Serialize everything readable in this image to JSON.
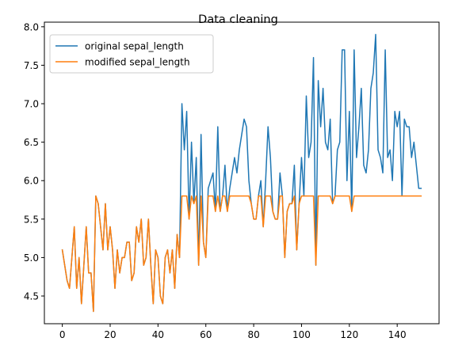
{
  "chart_data": {
    "type": "line",
    "title": "Data cleaning",
    "xlabel": "",
    "ylabel": "",
    "xlim": [
      -7.5,
      157.5
    ],
    "ylim": [
      4.14,
      8.06
    ],
    "xticks": [
      0,
      20,
      40,
      60,
      80,
      100,
      120,
      140
    ],
    "yticks": [
      4.5,
      5.0,
      5.5,
      6.0,
      6.5,
      7.0,
      7.5,
      8.0
    ],
    "xtick_labels": [
      "0",
      "20",
      "40",
      "60",
      "80",
      "100",
      "120",
      "140"
    ],
    "ytick_labels": [
      "4.5",
      "5.0",
      "5.5",
      "6.0",
      "6.5",
      "7.0",
      "7.5",
      "8.0"
    ],
    "grid": false,
    "legend_position": "upper-left",
    "series": [
      {
        "name": "original sepal_length",
        "color": "#1f77b4",
        "values": [
          5.1,
          4.9,
          4.7,
          4.6,
          5.0,
          5.4,
          4.6,
          5.0,
          4.4,
          4.9,
          5.4,
          4.8,
          4.8,
          4.3,
          5.8,
          5.7,
          5.4,
          5.1,
          5.7,
          5.1,
          5.4,
          5.1,
          4.6,
          5.1,
          4.8,
          5.0,
          5.0,
          5.2,
          5.2,
          4.7,
          4.8,
          5.4,
          5.2,
          5.5,
          4.9,
          5.0,
          5.5,
          4.9,
          4.4,
          5.1,
          5.0,
          4.5,
          4.4,
          5.0,
          5.1,
          4.8,
          5.1,
          4.6,
          5.3,
          5.0,
          7.0,
          6.4,
          6.9,
          5.5,
          6.5,
          5.7,
          6.3,
          4.9,
          6.6,
          5.2,
          5.0,
          5.9,
          6.0,
          6.1,
          5.6,
          6.7,
          5.6,
          5.8,
          6.2,
          5.6,
          5.9,
          6.1,
          6.3,
          6.1,
          6.4,
          6.6,
          6.8,
          6.7,
          6.0,
          5.7,
          5.5,
          5.5,
          5.8,
          6.0,
          5.4,
          6.0,
          6.7,
          6.3,
          5.6,
          5.5,
          5.5,
          6.1,
          5.8,
          5.0,
          5.6,
          5.7,
          5.7,
          6.2,
          5.1,
          5.7,
          6.3,
          5.8,
          7.1,
          6.3,
          6.5,
          7.6,
          4.9,
          7.3,
          6.7,
          7.2,
          6.5,
          6.4,
          6.8,
          5.7,
          5.8,
          6.4,
          6.5,
          7.7,
          7.7,
          6.0,
          6.9,
          5.6,
          7.7,
          6.3,
          6.7,
          7.2,
          6.2,
          6.1,
          6.4,
          7.2,
          7.4,
          7.9,
          6.4,
          6.3,
          6.1,
          7.7,
          6.3,
          6.4,
          6.0,
          6.9,
          6.7,
          6.9,
          5.8,
          6.8,
          6.7,
          6.7,
          6.3,
          6.5,
          6.2,
          5.9,
          5.9
        ]
      },
      {
        "name": "modified sepal_length",
        "color": "#ff7f0e",
        "values": [
          5.1,
          4.9,
          4.7,
          4.6,
          5.0,
          5.4,
          4.6,
          5.0,
          4.4,
          4.9,
          5.4,
          4.8,
          4.8,
          4.3,
          5.8,
          5.7,
          5.4,
          5.1,
          5.7,
          5.1,
          5.4,
          5.1,
          4.6,
          5.1,
          4.8,
          5.0,
          5.0,
          5.2,
          5.2,
          4.7,
          4.8,
          5.4,
          5.2,
          5.5,
          4.9,
          5.0,
          5.5,
          4.9,
          4.4,
          5.1,
          5.0,
          4.5,
          4.4,
          5.0,
          5.1,
          4.8,
          5.1,
          4.6,
          5.3,
          5.0,
          5.8,
          5.8,
          5.8,
          5.5,
          5.8,
          5.7,
          5.8,
          4.9,
          5.8,
          5.2,
          5.0,
          5.8,
          5.8,
          5.8,
          5.6,
          5.8,
          5.6,
          5.8,
          5.8,
          5.6,
          5.8,
          5.8,
          5.8,
          5.8,
          5.8,
          5.8,
          5.8,
          5.8,
          5.8,
          5.7,
          5.5,
          5.5,
          5.8,
          5.8,
          5.4,
          5.8,
          5.8,
          5.8,
          5.6,
          5.5,
          5.5,
          5.8,
          5.8,
          5.0,
          5.6,
          5.7,
          5.7,
          5.8,
          5.1,
          5.7,
          5.8,
          5.8,
          5.8,
          5.8,
          5.8,
          5.8,
          4.9,
          5.8,
          5.8,
          5.8,
          5.8,
          5.8,
          5.8,
          5.7,
          5.8,
          5.8,
          5.8,
          5.8,
          5.8,
          5.8,
          5.8,
          5.6,
          5.8,
          5.8,
          5.8,
          5.8,
          5.8,
          5.8,
          5.8,
          5.8,
          5.8,
          5.8,
          5.8,
          5.8,
          5.8,
          5.8,
          5.8,
          5.8,
          5.8,
          5.8,
          5.8,
          5.8,
          5.8,
          5.8,
          5.8,
          5.8,
          5.8,
          5.8,
          5.8,
          5.8,
          5.8
        ]
      }
    ]
  }
}
